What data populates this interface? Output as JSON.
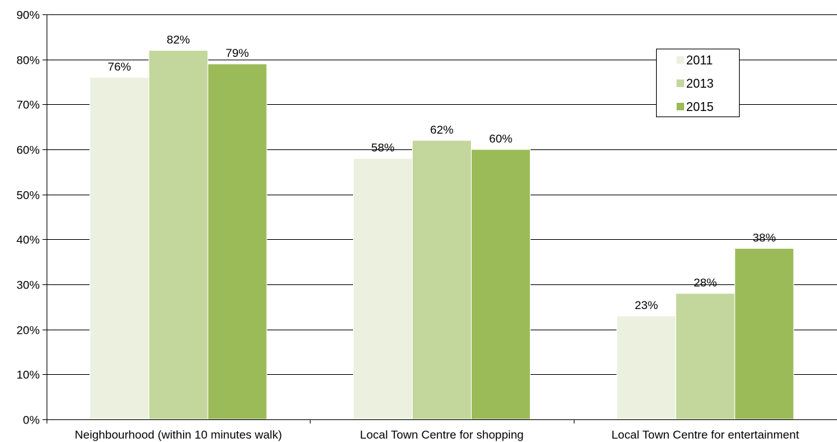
{
  "chart_data": {
    "type": "bar",
    "categories": [
      "Neighbourhood (within 10 minutes walk)",
      "Local Town Centre for shopping",
      "Local Town Centre for entertainment"
    ],
    "series": [
      {
        "name": "2011",
        "values": [
          76,
          58,
          23
        ],
        "color": "#ebf1de"
      },
      {
        "name": "2013",
        "values": [
          82,
          62,
          28
        ],
        "color": "#c3d69b"
      },
      {
        "name": "2015",
        "values": [
          79,
          60,
          38
        ],
        "color": "#9bbb59"
      }
    ],
    "data_labels": [
      [
        "76%",
        "58%",
        "23%"
      ],
      [
        "82%",
        "62%",
        "28%"
      ],
      [
        "79%",
        "60%",
        "38%"
      ]
    ],
    "ylim": [
      0,
      90
    ],
    "y_ticks": [
      "0%",
      "10%",
      "20%",
      "30%",
      "40%",
      "50%",
      "60%",
      "70%",
      "80%",
      "90%"
    ],
    "grid": true,
    "legend_position": "top-right",
    "title": "",
    "xlabel": "",
    "ylabel": ""
  }
}
